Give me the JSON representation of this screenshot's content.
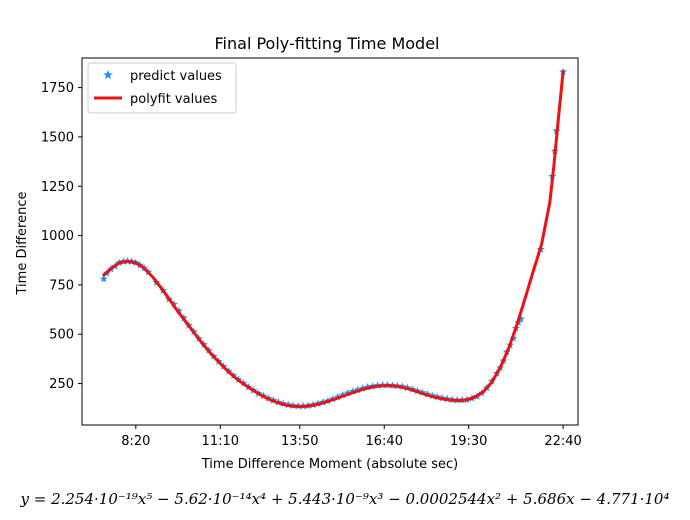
{
  "chart_data": {
    "type": "line",
    "title": "Final Poly-fitting Time Model",
    "xlabel": "Time Difference Moment (absolute sec)",
    "ylabel": "Time Difference",
    "equation": "y = 2.254·10⁻¹⁹x⁵ − 5.62·10⁻¹⁴x⁴ + 5.443·10⁻⁹x³ − 0.0002544x² + 5.686x − 4.771·10⁴",
    "xlim": [
      23500,
      83400
    ],
    "ylim": [
      40,
      1900
    ],
    "x_unit": "seconds since midnight (ticks shown as h:mm)",
    "xticks": [
      {
        "value": 30000,
        "label": "8:20"
      },
      {
        "value": 40200,
        "label": "11:10"
      },
      {
        "value": 49800,
        "label": "13:50"
      },
      {
        "value": 60000,
        "label": "16:40"
      },
      {
        "value": 70200,
        "label": "19:30"
      },
      {
        "value": 81600,
        "label": "22:40"
      }
    ],
    "yticks": [
      {
        "value": 250,
        "label": "250"
      },
      {
        "value": 500,
        "label": "500"
      },
      {
        "value": 750,
        "label": "750"
      },
      {
        "value": 1000,
        "label": "1000"
      },
      {
        "value": 1250,
        "label": "1250"
      },
      {
        "value": 1500,
        "label": "1500"
      },
      {
        "value": 1750,
        "label": "1750"
      }
    ],
    "grid": false,
    "legend_position": "top-left",
    "series": [
      {
        "name": "predict values",
        "marker": "star",
        "color": "#1f8ff5",
        "points": [
          [
            26130,
            780
          ],
          [
            26500,
            810
          ],
          [
            27000,
            830
          ],
          [
            27500,
            845
          ],
          [
            28000,
            862
          ],
          [
            28500,
            868
          ],
          [
            29000,
            870
          ],
          [
            29500,
            868
          ],
          [
            30000,
            862
          ],
          [
            30500,
            850
          ],
          [
            31000,
            835
          ],
          [
            31500,
            815
          ],
          [
            32500,
            762
          ],
          [
            33300,
            722
          ],
          [
            34000,
            678
          ],
          [
            34600,
            652
          ],
          [
            35200,
            618
          ],
          [
            35800,
            582
          ],
          [
            36400,
            545
          ],
          [
            37000,
            512
          ],
          [
            37600,
            478
          ],
          [
            38200,
            448
          ],
          [
            38800,
            418
          ],
          [
            39400,
            388
          ],
          [
            40000,
            362
          ],
          [
            40600,
            336
          ],
          [
            41200,
            312
          ],
          [
            41800,
            290
          ],
          [
            42400,
            270
          ],
          [
            43000,
            252
          ],
          [
            43600,
            232
          ],
          [
            44200,
            216
          ],
          [
            44800,
            200
          ],
          [
            45400,
            188
          ],
          [
            46000,
            175
          ],
          [
            46600,
            165
          ],
          [
            47200,
            155
          ],
          [
            47800,
            148
          ],
          [
            48400,
            142
          ],
          [
            49000,
            138
          ],
          [
            49600,
            136
          ],
          [
            50200,
            136
          ],
          [
            50800,
            138
          ],
          [
            51400,
            142
          ],
          [
            52000,
            148
          ],
          [
            52600,
            155
          ],
          [
            53200,
            162
          ],
          [
            53800,
            172
          ],
          [
            54400,
            182
          ],
          [
            55000,
            192
          ],
          [
            55600,
            202
          ],
          [
            56200,
            210
          ],
          [
            56800,
            218
          ],
          [
            57400,
            226
          ],
          [
            58000,
            232
          ],
          [
            58600,
            236
          ],
          [
            59200,
            240
          ],
          [
            59800,
            242
          ],
          [
            60400,
            242
          ],
          [
            61000,
            240
          ],
          [
            61600,
            238
          ],
          [
            62200,
            234
          ],
          [
            62800,
            228
          ],
          [
            63400,
            220
          ],
          [
            64000,
            212
          ],
          [
            64600,
            204
          ],
          [
            65200,
            196
          ],
          [
            65800,
            188
          ],
          [
            66400,
            182
          ],
          [
            67000,
            176
          ],
          [
            67600,
            172
          ],
          [
            68200,
            168
          ],
          [
            68800,
            166
          ],
          [
            69400,
            166
          ],
          [
            70000,
            168
          ],
          [
            70600,
            175
          ],
          [
            71200,
            185
          ],
          [
            71800,
            202
          ],
          [
            72400,
            228
          ],
          [
            73000,
            262
          ],
          [
            73600,
            302
          ],
          [
            74000,
            330
          ],
          [
            74400,
            365
          ],
          [
            74800,
            410
          ],
          [
            75200,
            445
          ],
          [
            75600,
            480
          ],
          [
            75900,
            530
          ],
          [
            76200,
            560
          ],
          [
            76500,
            578
          ],
          [
            78900,
            930
          ],
          [
            80300,
            1300
          ],
          [
            80600,
            1428
          ],
          [
            80800,
            1530
          ],
          [
            81600,
            1830
          ]
        ]
      },
      {
        "name": "polyfit values",
        "marker": "line",
        "color": "#ee1111",
        "points": [
          [
            26130,
            800
          ],
          [
            27000,
            832
          ],
          [
            28000,
            862
          ],
          [
            29000,
            870
          ],
          [
            30000,
            862
          ],
          [
            31000,
            835
          ],
          [
            32000,
            792
          ],
          [
            33000,
            738
          ],
          [
            34000,
            680
          ],
          [
            35000,
            620
          ],
          [
            36000,
            565
          ],
          [
            37000,
            510
          ],
          [
            38000,
            455
          ],
          [
            39000,
            405
          ],
          [
            40000,
            360
          ],
          [
            41000,
            318
          ],
          [
            42000,
            280
          ],
          [
            43000,
            248
          ],
          [
            44000,
            220
          ],
          [
            45000,
            194
          ],
          [
            46000,
            172
          ],
          [
            47000,
            155
          ],
          [
            48000,
            142
          ],
          [
            49000,
            135
          ],
          [
            50000,
            133
          ],
          [
            51000,
            137
          ],
          [
            52000,
            145
          ],
          [
            53000,
            157
          ],
          [
            54000,
            171
          ],
          [
            55000,
            186
          ],
          [
            56000,
            201
          ],
          [
            57000,
            215
          ],
          [
            58000,
            227
          ],
          [
            59000,
            236
          ],
          [
            60000,
            240
          ],
          [
            61000,
            239
          ],
          [
            62000,
            233
          ],
          [
            63000,
            223
          ],
          [
            64000,
            209
          ],
          [
            65000,
            194
          ],
          [
            66000,
            182
          ],
          [
            67000,
            173
          ],
          [
            68000,
            166
          ],
          [
            69000,
            164
          ],
          [
            70000,
            168
          ],
          [
            71000,
            182
          ],
          [
            72000,
            210
          ],
          [
            73000,
            258
          ],
          [
            74000,
            330
          ],
          [
            75000,
            425
          ],
          [
            76000,
            545
          ],
          [
            77000,
            680
          ],
          [
            78000,
            820
          ],
          [
            79000,
            955
          ],
          [
            80000,
            1170
          ],
          [
            80500,
            1360
          ],
          [
            81000,
            1580
          ],
          [
            81600,
            1830
          ]
        ]
      }
    ]
  }
}
